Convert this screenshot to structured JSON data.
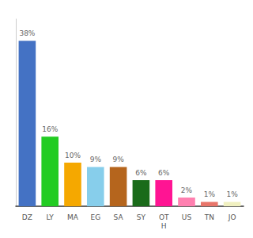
{
  "chart_data": {
    "type": "bar",
    "categories": [
      "DZ",
      "LY",
      "MA",
      "EG",
      "SA",
      "SY",
      "OT\nH",
      "US",
      "TN",
      "JO"
    ],
    "values": [
      38,
      16,
      10,
      9,
      9,
      6,
      6,
      2,
      1,
      1
    ],
    "value_labels": [
      "38%",
      "16%",
      "10%",
      "9%",
      "9%",
      "6%",
      "6%",
      "2%",
      "1%",
      "1%"
    ],
    "colors": [
      "#4472c4",
      "#22cc22",
      "#f5a800",
      "#87ceeb",
      "#b5651d",
      "#1a6b1a",
      "#ff1493",
      "#ff80b0",
      "#e8756a",
      "#f0f0c0"
    ],
    "ylim": [
      0,
      43
    ],
    "data_labels": true,
    "tick_labels": "x",
    "grid": false
  }
}
